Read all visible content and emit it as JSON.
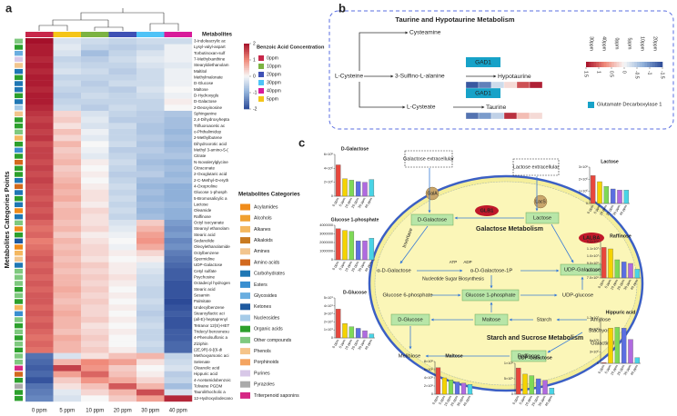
{
  "panel_a": {
    "letter": "a",
    "y_label": "Metabolites Categories Points",
    "names_heading": "Metabolites",
    "columns": [
      "0 ppm",
      "5 ppm",
      "10 ppm",
      "20 ppm",
      "30 ppm",
      "40 ppm"
    ],
    "column_colors": [
      "#c8274a",
      "#f5c518",
      "#7cb342",
      "#3f51b5",
      "#4fc3f7",
      "#d81b9a"
    ],
    "concentration_title": "Benzoic Acid Concentration",
    "concentration_labels": [
      "0ppm",
      "10ppm",
      "20ppm",
      "30ppm",
      "40ppm",
      "5ppm"
    ],
    "concentration_colors": [
      "#c8274a",
      "#7cb342",
      "#3f51b5",
      "#4fc3f7",
      "#d81b9a",
      "#f5c518"
    ],
    "colorbar_lim": [
      -2,
      2
    ],
    "colorbar_ticks": [
      2,
      1,
      0,
      -1,
      -2
    ],
    "categories_title": "Metabolites Categories",
    "categories": [
      "Acylamides",
      "Alcohols",
      "Alkanes",
      "Alkaloids",
      "Amines",
      "Amino acids",
      "Carbohydrates",
      "Esters",
      "Glycosides",
      "Ketones",
      "Nucleosides",
      "Organic acids",
      "Other compounds",
      "Phenols",
      "Porphinoids",
      "Purines",
      "Pyrazoles",
      "Triterpenoid saponins"
    ],
    "category_colors": [
      "#f08c1a",
      "#f0a030",
      "#f4b860",
      "#c87a20",
      "#f2c58e",
      "#d2691e",
      "#1f77b4",
      "#3a8fd0",
      "#6aaee0",
      "#1e5aa0",
      "#a6cbe8",
      "#2ca02c",
      "#7fc97f",
      "#f5c48a",
      "#f4a460",
      "#d8c8e8",
      "#aaaaaa",
      "#d62785"
    ],
    "row_categories": [
      12,
      11,
      8,
      15,
      4,
      6,
      11,
      6,
      6,
      11,
      6,
      10,
      4,
      11,
      11,
      12,
      2,
      11,
      7,
      11,
      5,
      11,
      11,
      6,
      5,
      6,
      11,
      6,
      0,
      6,
      12,
      0,
      11,
      9,
      0,
      2,
      4,
      6,
      12,
      12,
      12,
      11,
      12,
      11,
      2,
      7,
      12,
      11,
      12,
      11,
      12,
      11,
      12,
      12,
      17,
      5,
      11,
      16,
      11,
      11
    ],
    "heatmap": {
      "rows": [
        "3-Indoleacrylic ac",
        "Lysyl-valyl-aspart",
        "Torbutinoxan-sulf",
        "7-Methylxanthine",
        "Stearyldiethanolam",
        "Maltitol",
        "Methylmalonate",
        "D-Glucose",
        "Maltose",
        "D-Hydroxyglu",
        "D-Galactose",
        "2-Deoxyinosine",
        "Sphinganine",
        "2,4-Dihydroxyhepta",
        "Trifluoroacetic ac",
        "o-Phthalimidop",
        "2-Methylbutene",
        "Dihydroorotic acid",
        "Methyl 3-amino-5-(",
        "Citrate",
        "N-Isovalerylglycine",
        "Citraconate",
        "2-Oxoglutaric acid",
        "2-C-Methyl-D-eryth",
        "4-Oxoproline",
        "Glucose 1-phosph",
        "5-Bromosalicylic a",
        "Lactose",
        "Oleamide",
        "Raffinose",
        "Octyl isocyanate",
        "Stearoyl ethanolam",
        "Stearic acid",
        "Sedanolide",
        "Oleoylethanolamide",
        "Octylbenzene",
        "Spermidine",
        "UDP-Galactose",
        "Cetyl sulfate",
        "Psychosine",
        "Octadecyl hydrogen",
        "Stearic acid",
        "Sesamin",
        "Palmitate",
        "Undecylbenzene",
        "Stearoyllactic aci",
        "(all-E)-heptaprenyl",
        "Tetranor 12(S)-HET",
        "Tridecyl benzenesu",
        "4-Phenolsulfonic a",
        "Ziziphin",
        "(2E,9R)-9-[(6-di",
        "Methoxyarsonic aci",
        "Selenate",
        "Oleanolic acid",
        "Hippuric acid",
        "4-Acetamidobenzoic",
        "Tolvaine PGDM",
        "Taurolithocholic a",
        "12-Hydroxydodecano"
      ],
      "values": [
        [
          2.0,
          -0.3,
          -0.4,
          -0.5,
          -0.4,
          -0.4
        ],
        [
          1.9,
          -0.2,
          -0.5,
          -0.6,
          -0.5,
          -0.1
        ],
        [
          1.9,
          -0.3,
          -0.8,
          -0.5,
          -0.3,
          -0.1
        ],
        [
          1.8,
          -0.5,
          -0.6,
          -0.4,
          -0.2,
          -0.1
        ],
        [
          1.9,
          -0.4,
          -0.5,
          -0.5,
          -0.3,
          -0.2
        ],
        [
          1.8,
          -0.3,
          -0.4,
          -0.6,
          -0.4,
          -0.1
        ],
        [
          1.9,
          -0.5,
          -0.5,
          -0.5,
          -0.4,
          -0.1
        ],
        [
          1.9,
          -0.4,
          -0.6,
          -0.4,
          -0.4,
          -0.1
        ],
        [
          1.8,
          -0.5,
          -0.5,
          -0.6,
          -0.3,
          0.0
        ],
        [
          1.9,
          -0.6,
          -0.4,
          -0.5,
          -0.4,
          -0.1
        ],
        [
          1.9,
          -0.5,
          -0.5,
          -0.5,
          -0.5,
          0.1
        ],
        [
          1.8,
          -0.4,
          -0.6,
          -0.4,
          -0.5,
          0.0
        ],
        [
          1.7,
          0.3,
          -0.3,
          -0.5,
          -0.6,
          -0.7
        ],
        [
          1.6,
          0.4,
          -0.2,
          -0.6,
          -0.6,
          -0.8
        ],
        [
          1.7,
          0.2,
          -0.3,
          -0.4,
          -0.7,
          -0.8
        ],
        [
          1.6,
          0.5,
          -0.1,
          -0.5,
          -0.7,
          -0.9
        ],
        [
          1.7,
          0.3,
          -0.2,
          -0.5,
          -0.6,
          -0.8
        ],
        [
          1.5,
          0.6,
          0.0,
          -0.4,
          -0.7,
          -0.9
        ],
        [
          1.6,
          0.4,
          -0.1,
          -0.6,
          -0.6,
          -0.8
        ],
        [
          1.6,
          0.5,
          -0.2,
          -0.5,
          -0.7,
          -0.7
        ],
        [
          1.5,
          0.6,
          0.1,
          -0.4,
          -0.8,
          -0.9
        ],
        [
          1.6,
          0.4,
          0.0,
          -0.5,
          -0.7,
          -0.8
        ],
        [
          1.5,
          0.5,
          0.1,
          -0.6,
          -0.6,
          -0.9
        ],
        [
          1.6,
          0.6,
          0.0,
          -0.5,
          -0.8,
          -0.8
        ],
        [
          1.5,
          0.7,
          0.1,
          -0.4,
          -0.9,
          -1.0
        ],
        [
          1.5,
          0.6,
          0.2,
          -0.5,
          -0.8,
          -1.0
        ],
        [
          1.4,
          0.7,
          0.2,
          -0.4,
          -0.9,
          -1.0
        ],
        [
          1.5,
          0.5,
          0.1,
          -0.5,
          -0.8,
          -0.9
        ],
        [
          1.4,
          0.6,
          0.3,
          -0.4,
          -0.9,
          -1.0
        ],
        [
          1.5,
          0.6,
          0.2,
          -0.5,
          -0.8,
          -1.0
        ],
        [
          1.3,
          0.5,
          0.2,
          -0.3,
          0.4,
          -1.2
        ],
        [
          1.2,
          0.6,
          0.3,
          -0.2,
          0.6,
          -1.3
        ],
        [
          1.3,
          0.4,
          0.1,
          -0.1,
          0.8,
          -1.2
        ],
        [
          1.1,
          0.6,
          0.2,
          0.0,
          0.9,
          -1.4
        ],
        [
          1.2,
          0.5,
          0.3,
          -0.1,
          0.7,
          -1.3
        ],
        [
          1.3,
          0.6,
          0.3,
          0.1,
          0.3,
          -1.5
        ],
        [
          1.4,
          0.5,
          0.2,
          0.0,
          0.1,
          -1.6
        ],
        [
          1.3,
          0.6,
          0.4,
          0.1,
          -0.2,
          -1.7
        ],
        [
          1.4,
          0.5,
          0.3,
          0.1,
          -0.3,
          -1.8
        ],
        [
          1.3,
          0.6,
          0.4,
          0.2,
          -0.4,
          -1.8
        ],
        [
          1.4,
          0.6,
          0.3,
          0.1,
          -0.4,
          -1.9
        ],
        [
          1.3,
          0.7,
          0.4,
          0.0,
          -0.5,
          -1.9
        ],
        [
          1.4,
          0.6,
          0.3,
          0.1,
          -0.5,
          -1.9
        ],
        [
          1.4,
          0.5,
          0.4,
          0.0,
          -0.4,
          -2.0
        ],
        [
          1.3,
          0.6,
          0.3,
          0.1,
          -0.5,
          -1.9
        ],
        [
          1.4,
          0.7,
          0.3,
          0.0,
          -0.6,
          -1.8
        ],
        [
          1.3,
          0.6,
          0.4,
          0.1,
          -0.5,
          -1.9
        ],
        [
          1.4,
          0.6,
          0.2,
          0.0,
          -0.4,
          -1.9
        ],
        [
          1.3,
          0.5,
          0.3,
          0.1,
          -0.5,
          -1.8
        ],
        [
          1.2,
          0.7,
          0.4,
          0.0,
          -0.5,
          -1.8
        ],
        [
          1.3,
          0.6,
          0.3,
          0.0,
          -0.4,
          -1.7
        ],
        [
          1.2,
          0.6,
          0.4,
          0.1,
          -0.5,
          -1.7
        ],
        [
          -1.6,
          -0.3,
          0.2,
          0.5,
          0.6,
          -0.5
        ],
        [
          -1.7,
          0.6,
          1.0,
          0.8,
          0.2,
          -0.4
        ],
        [
          -1.8,
          1.6,
          0.9,
          0.4,
          0.0,
          -0.3
        ],
        [
          -1.7,
          0.8,
          1.3,
          0.5,
          0.1,
          -0.6
        ],
        [
          -1.9,
          0.4,
          0.9,
          0.7,
          0.3,
          -0.5
        ],
        [
          -1.6,
          0.2,
          0.5,
          1.4,
          0.6,
          -0.8
        ],
        [
          -1.5,
          -0.2,
          0.3,
          0.6,
          1.5,
          -0.3
        ],
        [
          -1.4,
          -0.3,
          0.0,
          0.4,
          0.8,
          1.8
        ]
      ]
    }
  },
  "panel_b": {
    "letter": "b",
    "title": "Taurine and Hypotaurine Metabolism",
    "cysteamine": "Cysteamine",
    "l_cysteine": "L-Cysteine",
    "sulfino": "3-Sulfino-L-alanine",
    "enzyme_1": "GAD1",
    "hypotaurine": "Hypotaurine",
    "l_cysteate": "L-Cysteate",
    "enzyme_2": "GAD1",
    "taurine": "Taurine",
    "enzyme_legend": "Glutamate Decarboxylase 1",
    "columns": [
      "30ppm",
      "40ppm",
      "0ppm",
      "5ppm",
      "10ppm",
      "20ppm"
    ],
    "scale_lim": [
      -1.5,
      1.5
    ],
    "scale_ticks": [
      1.5,
      1,
      0.5,
      0,
      -0.5,
      -1,
      -1.5
    ],
    "hypotaurine_values": [
      -1.4,
      -1.1,
      -0.3,
      0.2,
      1.1,
      1.4
    ],
    "taurine_values": [
      -1.2,
      -0.9,
      -0.4,
      1.3,
      0.4,
      0.2
    ]
  },
  "panel_c": {
    "letter": "c",
    "labels": {
      "gal_ext": "Galactose extracellular",
      "lac_ext": "Lactose extracellular",
      "gala": "GalA",
      "lacs": "LacS",
      "d_gal": "D-Galactose",
      "lactose": "Lactose",
      "glb1": "GLB1",
      "lalba": "LALBA",
      "gal_met": "Galactose Metabolism",
      "invertase": "Invertase",
      "a_gal": "α-D-Galactose",
      "a_gal1p": "α-D-Galactose-1P",
      "udp_gal": "UDP-Galactose",
      "atp": "ATP",
      "adp": "ADP",
      "nsb": "Nucleotide Sugar Biosynthesis",
      "g6p": "Glucose 6-phosphate",
      "g1p": "Glucose 1-phosphate",
      "udp_glc": "UDP-glucose",
      "d_glc": "D-Glucose",
      "maltose": "Maltose",
      "starch": "Starch",
      "amylose": "Amylose",
      "stachyose": "Stachyose",
      "galactinol": "Galactinol",
      "ssm": "Starch and Sucrose Metabolism",
      "melibiose": "Melibiose",
      "raffinose": "Raffinose"
    },
    "colors": [
      "#e8473c",
      "#f5d300",
      "#7ed957",
      "#5b6ee1",
      "#b06ae0",
      "#49d4e6"
    ],
    "charts": [
      {
        "type": "bar",
        "title": "D-Galactose",
        "categories": [
          "0 ppm",
          "5 ppm",
          "10 ppm",
          "20 ppm",
          "30 ppm",
          "40 ppm"
        ],
        "values": [
          4500000,
          2500000,
          2300000,
          2100000,
          2000000,
          2400000
        ],
        "ylim": [
          0,
          6000000
        ],
        "yticks": [
          0,
          {
            "value": 2000000,
            "label": "2×10⁶"
          },
          {
            "value": 4000000,
            "label": "4×10⁶"
          },
          {
            "value": 6000000,
            "label": "6×10⁶"
          }
        ]
      },
      {
        "type": "bar",
        "title": "Glucose 1-phosphate",
        "categories": [
          "0 ppm",
          "5 ppm",
          "10 ppm",
          "20 ppm",
          "30 ppm",
          "40 ppm"
        ],
        "values": [
          3600000,
          3400000,
          3300000,
          2200000,
          2200000,
          2500000
        ],
        "ylim": [
          0,
          4000000
        ],
        "yticks": [
          0,
          1000000,
          2000000,
          3000000,
          4000000
        ]
      },
      {
        "type": "bar",
        "title": "D-Glucose",
        "categories": [
          "0 ppm",
          "5 ppm",
          "10 ppm",
          "20 ppm",
          "30 ppm",
          "40 ppm"
        ],
        "values": [
          3600000000,
          1800000000,
          1400000000,
          1200000000,
          900000000,
          500000000
        ],
        "ylim": [
          0,
          5000000000
        ],
        "yticks": [
          0,
          {
            "value": 1000000000,
            "label": "1×10⁹"
          },
          {
            "value": 2000000000,
            "label": "2×10⁹"
          },
          {
            "value": 3000000000,
            "label": "3×10⁹"
          },
          {
            "value": 4000000000,
            "label": "4×10⁹"
          },
          {
            "value": 5000000000,
            "label": "5×10⁹"
          }
        ]
      },
      {
        "type": "bar",
        "title": "Maltose",
        "categories": [
          "0 ppm",
          "5 ppm",
          "10 ppm",
          "20 ppm",
          "30 ppm",
          "40 ppm"
        ],
        "values": [
          6500000,
          4000000,
          3500000,
          3000000,
          2700000,
          2400000
        ],
        "ylim": [
          0,
          8000000
        ],
        "yticks": [
          0,
          {
            "value": 2000000,
            "label": "2×10⁶"
          },
          {
            "value": 4000000,
            "label": "4×10⁶"
          },
          {
            "value": 6000000,
            "label": "6×10⁶"
          },
          {
            "value": 8000000,
            "label": "8×10⁶"
          }
        ]
      },
      {
        "type": "bar",
        "title": "UDP-Galactose",
        "categories": [
          "0 ppm",
          "5 ppm",
          "10 ppm",
          "20 ppm",
          "30 ppm",
          "40 ppm"
        ],
        "values": [
          850000,
          650000,
          600000,
          500000,
          450000,
          200000
        ],
        "ylim": [
          0,
          1000000
        ],
        "yticks": [
          0,
          {
            "value": 500000,
            "label": "5×10⁵"
          },
          {
            "value": 1000000,
            "label": "1×10⁶"
          }
        ]
      },
      {
        "type": "bar",
        "title": "Lactose",
        "categories": [
          "0 ppm",
          "5 ppm",
          "10 ppm",
          "20 ppm",
          "30 ppm",
          "40 ppm"
        ],
        "values": [
          2300000,
          1800000,
          1400000,
          1200000,
          1100000,
          1100000
        ],
        "ylim": [
          0,
          3000000
        ],
        "yticks": [
          0,
          {
            "value": 1000000,
            "label": "1×10⁶"
          },
          {
            "value": 2000000,
            "label": "2×10⁶"
          },
          {
            "value": 3000000,
            "label": "3×10⁶"
          }
        ]
      },
      {
        "type": "bar",
        "title": "Raffinose",
        "categories": [
          "0 ppm",
          "5 ppm",
          "10 ppm",
          "20 ppm",
          "30 ppm",
          "40 ppm"
        ],
        "values": [
          11200000,
          11000000,
          9500000,
          9200000,
          9000000,
          8200000
        ],
        "ylim": [
          7000000,
          12000000
        ],
        "yticks": [
          {
            "value": 7000000,
            "label": "7.0×10⁶"
          },
          {
            "value": 8000000,
            "label": "8.0×10⁶"
          },
          {
            "value": 9000000,
            "label": "9.0×10⁶"
          },
          {
            "value": 10000000,
            "label": "1.0×10⁷"
          },
          {
            "value": 11000000,
            "label": "1.1×10⁷"
          },
          {
            "value": 12000000,
            "label": "1.2×10⁷"
          }
        ]
      },
      {
        "type": "bar",
        "title": "Hippuric acid",
        "categories": [
          "0 ppm",
          "5 ppm",
          "10 ppm",
          "20 ppm",
          "30 ppm",
          "40 ppm"
        ],
        "values": [
          200000,
          9300000,
          9500000,
          9300000,
          6300000,
          1500000
        ],
        "ylim": [
          0,
          12000000
        ],
        "yticks": [
          0,
          {
            "value": 3000000,
            "label": "3×10⁶"
          },
          {
            "value": 6000000,
            "label": "6×10⁶"
          },
          {
            "value": 9000000,
            "label": "9×10⁶"
          },
          {
            "value": 12000000,
            "label": "1.2×10⁷"
          }
        ]
      }
    ]
  }
}
